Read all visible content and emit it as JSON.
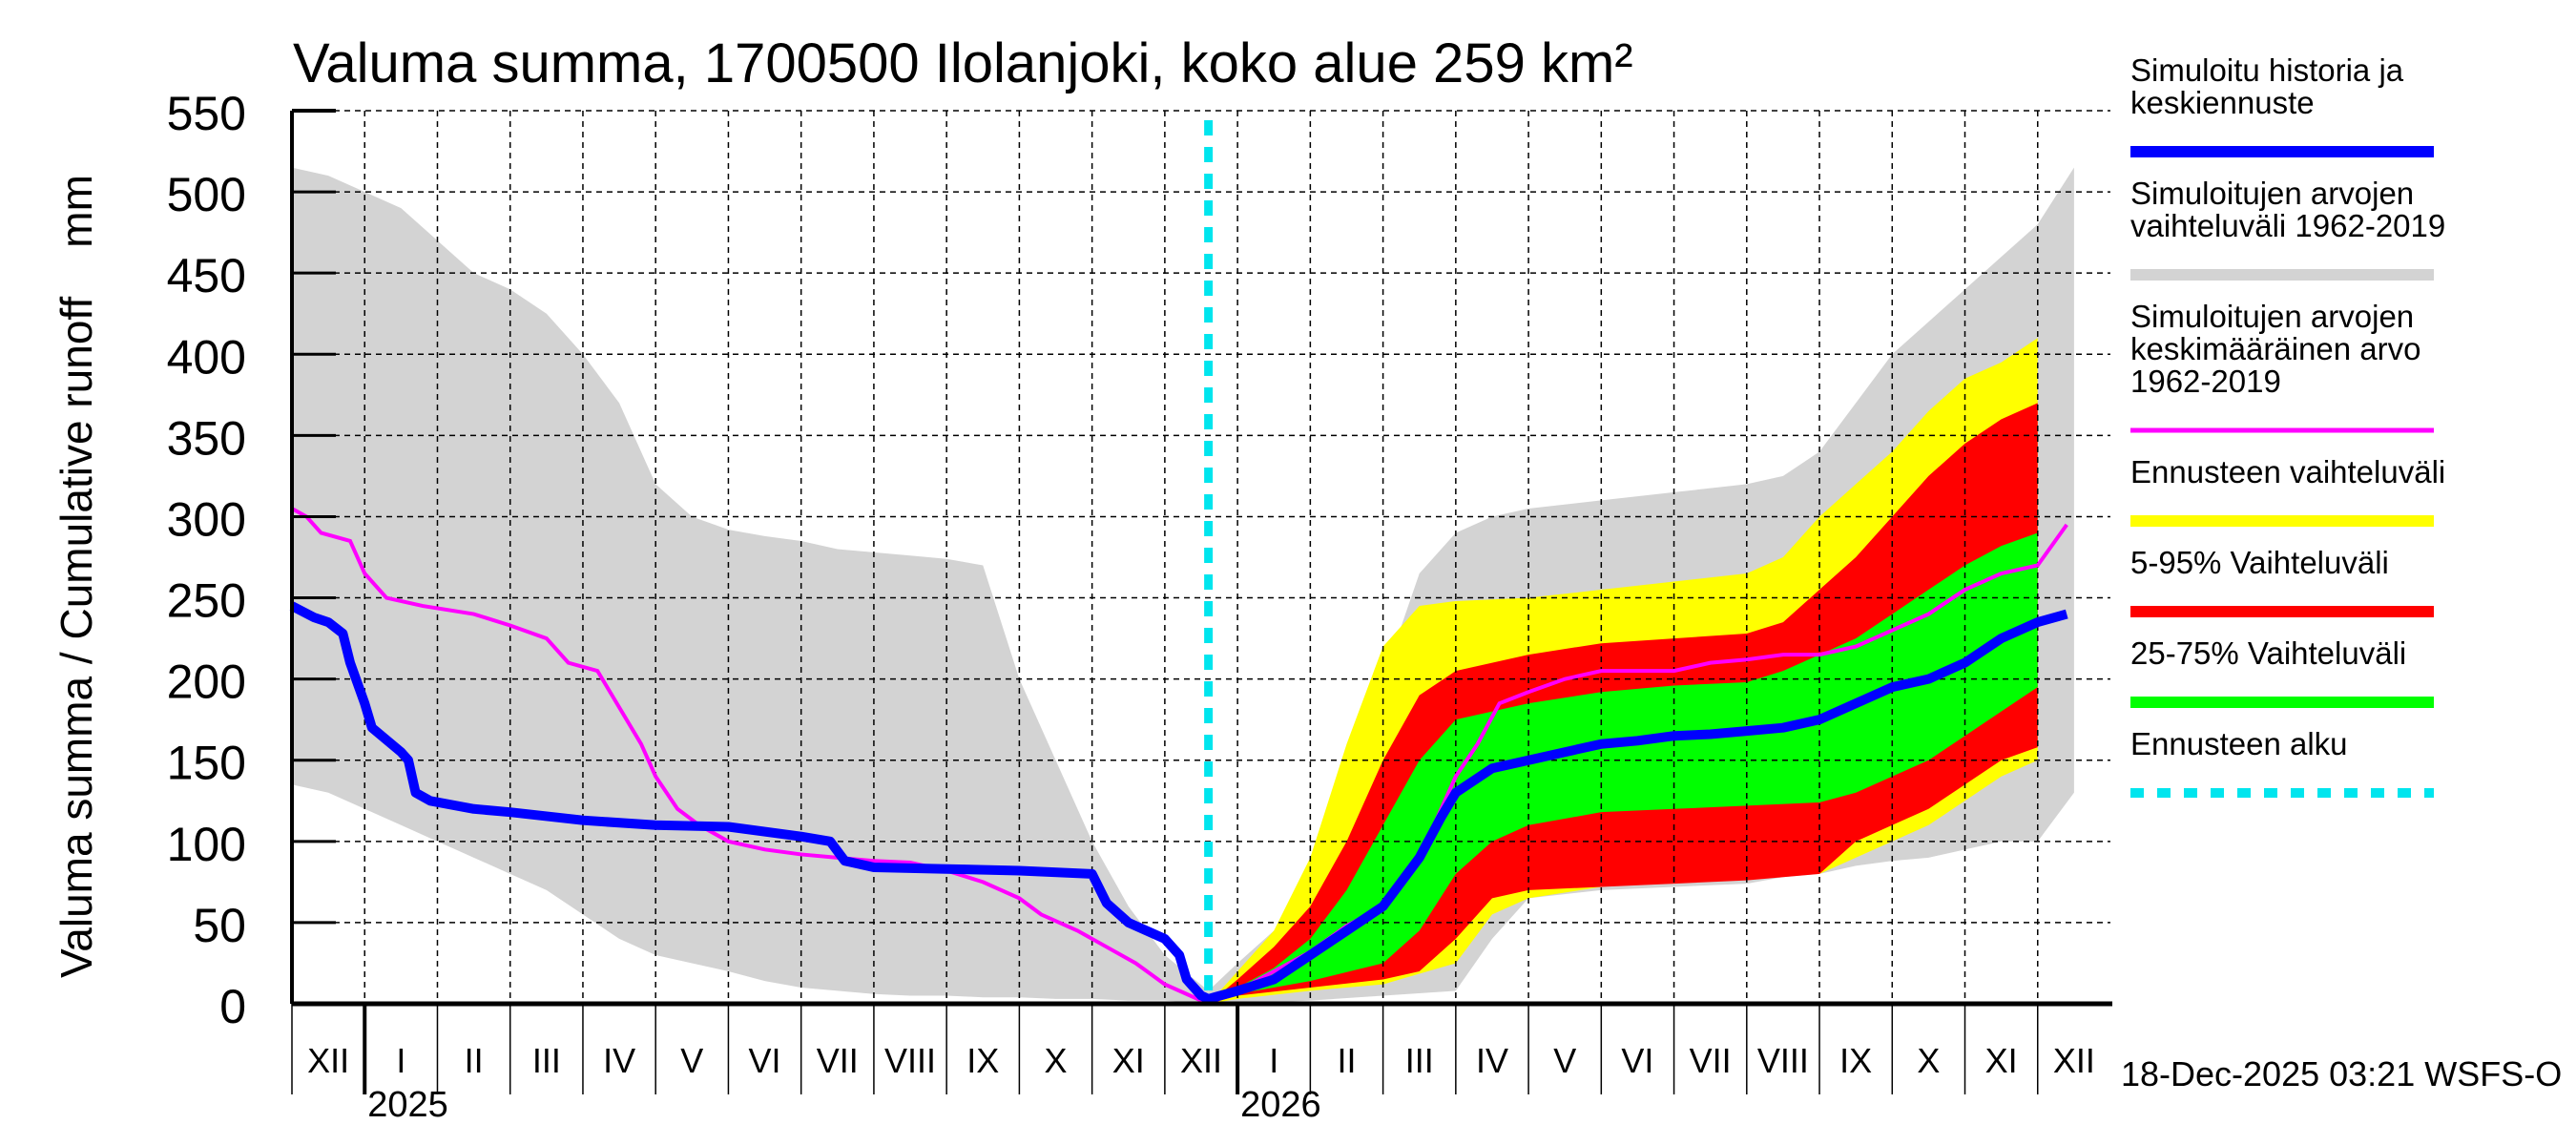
{
  "chart_data": {
    "type": "area",
    "title": "Valuma summa, 1700500 Ilolanjoki, koko alue 259 km²",
    "ylabel": "Valuma summa / Cumulative runoff    mm",
    "xlabel": "",
    "ylim": [
      0,
      550
    ],
    "yticks": [
      0,
      50,
      100,
      150,
      200,
      250,
      300,
      350,
      400,
      450,
      500,
      550
    ],
    "grid": true,
    "legend_position": "right",
    "x_range_months": [
      0,
      25
    ],
    "month_labels": [
      "XII",
      "I",
      "II",
      "III",
      "IV",
      "V",
      "VI",
      "VII",
      "VIII",
      "IX",
      "X",
      "XI",
      "XII",
      "I",
      "II",
      "III",
      "IV",
      "V",
      "VI",
      "VII",
      "VIII",
      "IX",
      "X",
      "XI",
      "XII"
    ],
    "year_labels": [
      {
        "label": "2025",
        "month_index": 1
      },
      {
        "label": "2026",
        "month_index": 13
      }
    ],
    "forecast_start_month": 12.6,
    "timestamp": "18-Dec-2025 03:21 WSFS-O",
    "colors": {
      "history": "#0000ff",
      "hist_range": "#d3d3d3",
      "hist_mean": "#ff00ff",
      "forecast_range": "#ffff00",
      "p5_95": "#ff0000",
      "p25_75": "#00ff00",
      "forecast_start": "#00e5ee"
    },
    "legend": [
      {
        "key": "history",
        "label_lines": [
          "Simuloitu historia ja",
          "keskiennuste"
        ],
        "style": "solid"
      },
      {
        "key": "hist_range",
        "label_lines": [
          "Simuloitujen arvojen",
          "vaihteluväli 1962-2019"
        ],
        "style": "solid"
      },
      {
        "key": "hist_mean",
        "label_lines": [
          "Simuloitujen arvojen",
          "keskimääräinen arvo",
          "   1962-2019"
        ],
        "style": "thin"
      },
      {
        "key": "forecast_range",
        "label_lines": [
          "Ennusteen vaihteluväli"
        ],
        "style": "solid"
      },
      {
        "key": "p5_95",
        "label_lines": [
          "5-95% Vaihteluväli"
        ],
        "style": "solid"
      },
      {
        "key": "p25_75",
        "label_lines": [
          "25-75% Vaihteluväli"
        ],
        "style": "solid"
      },
      {
        "key": "forecast_start",
        "label_lines": [
          "Ennusteen alku"
        ],
        "style": "dotted"
      }
    ],
    "series": {
      "hist_range_upper": [
        [
          0,
          515
        ],
        [
          0.5,
          510
        ],
        [
          1,
          500
        ],
        [
          1.5,
          490
        ],
        [
          2,
          470
        ],
        [
          2.5,
          450
        ],
        [
          3,
          440
        ],
        [
          3.5,
          425
        ],
        [
          4,
          400
        ],
        [
          4.5,
          370
        ],
        [
          5,
          320
        ],
        [
          5.5,
          300
        ],
        [
          6,
          292
        ],
        [
          6.5,
          288
        ],
        [
          7,
          285
        ],
        [
          7.5,
          280
        ],
        [
          8,
          278
        ],
        [
          8.5,
          276
        ],
        [
          9,
          274
        ],
        [
          9.5,
          270
        ],
        [
          10,
          200
        ],
        [
          10.5,
          150
        ],
        [
          11,
          100
        ],
        [
          11.5,
          60
        ],
        [
          12,
          30
        ],
        [
          12.6,
          8
        ]
      ],
      "hist_range_lower": [
        [
          0,
          135
        ],
        [
          0.5,
          130
        ],
        [
          1,
          120
        ],
        [
          1.5,
          110
        ],
        [
          2,
          100
        ],
        [
          2.5,
          90
        ],
        [
          3,
          80
        ],
        [
          3.5,
          70
        ],
        [
          4,
          55
        ],
        [
          4.5,
          40
        ],
        [
          5,
          30
        ],
        [
          5.5,
          25
        ],
        [
          6,
          20
        ],
        [
          6.5,
          14
        ],
        [
          7,
          10
        ],
        [
          7.5,
          8
        ],
        [
          8,
          6
        ],
        [
          8.5,
          5
        ],
        [
          9,
          5
        ],
        [
          9.5,
          4
        ],
        [
          10,
          4
        ],
        [
          10.5,
          3
        ],
        [
          11,
          3
        ],
        [
          11.5,
          2
        ],
        [
          12,
          2
        ],
        [
          12.6,
          0
        ]
      ],
      "hist_range_upper_fc": [
        [
          12.6,
          8
        ],
        [
          13,
          25
        ],
        [
          13.5,
          45
        ],
        [
          14,
          70
        ],
        [
          14.5,
          120
        ],
        [
          15,
          200
        ],
        [
          15.5,
          265
        ],
        [
          16,
          290
        ],
        [
          16.5,
          300
        ],
        [
          17,
          305
        ],
        [
          18,
          310
        ],
        [
          19,
          315
        ],
        [
          20,
          320
        ],
        [
          20.5,
          325
        ],
        [
          21,
          340
        ],
        [
          21.5,
          370
        ],
        [
          22,
          400
        ],
        [
          22.5,
          420
        ],
        [
          23,
          440
        ],
        [
          23.5,
          460
        ],
        [
          24,
          480
        ],
        [
          24.5,
          515
        ]
      ],
      "hist_range_lower_fc": [
        [
          12.6,
          0
        ],
        [
          13,
          0
        ],
        [
          14,
          2
        ],
        [
          15,
          5
        ],
        [
          16,
          8
        ],
        [
          16.5,
          40
        ],
        [
          17,
          65
        ],
        [
          18,
          70
        ],
        [
          19,
          72
        ],
        [
          20,
          74
        ],
        [
          20.5,
          78
        ],
        [
          21,
          80
        ],
        [
          21.5,
          85
        ],
        [
          22,
          88
        ],
        [
          22.5,
          90
        ],
        [
          23,
          95
        ],
        [
          23.5,
          100
        ],
        [
          24,
          100
        ],
        [
          24.5,
          130
        ]
      ],
      "forecast_range_upper": [
        [
          12.6,
          0
        ],
        [
          13,
          20
        ],
        [
          13.5,
          45
        ],
        [
          14,
          90
        ],
        [
          14.5,
          160
        ],
        [
          15,
          220
        ],
        [
          15.5,
          245
        ],
        [
          16,
          248
        ],
        [
          17,
          250
        ],
        [
          18,
          255
        ],
        [
          19,
          260
        ],
        [
          20,
          265
        ],
        [
          20.5,
          275
        ],
        [
          21,
          300
        ],
        [
          21.5,
          320
        ],
        [
          22,
          340
        ],
        [
          22.5,
          365
        ],
        [
          23,
          385
        ],
        [
          23.5,
          395
        ],
        [
          24,
          410
        ]
      ],
      "forecast_range_lower": [
        [
          12.6,
          0
        ],
        [
          13,
          3
        ],
        [
          14,
          8
        ],
        [
          15,
          12
        ],
        [
          16,
          25
        ],
        [
          16.5,
          55
        ],
        [
          17,
          65
        ],
        [
          18,
          72
        ],
        [
          19,
          76
        ],
        [
          20,
          78
        ],
        [
          21,
          80
        ],
        [
          21.5,
          90
        ],
        [
          22,
          100
        ],
        [
          22.5,
          110
        ],
        [
          23,
          125
        ],
        [
          23.5,
          140
        ],
        [
          24,
          150
        ]
      ],
      "p5_95_upper": [
        [
          12.6,
          0
        ],
        [
          13,
          15
        ],
        [
          13.5,
          35
        ],
        [
          14,
          60
        ],
        [
          14.5,
          100
        ],
        [
          15,
          150
        ],
        [
          15.5,
          190
        ],
        [
          16,
          205
        ],
        [
          17,
          215
        ],
        [
          18,
          222
        ],
        [
          19,
          225
        ],
        [
          20,
          228
        ],
        [
          20.5,
          235
        ],
        [
          21,
          255
        ],
        [
          21.5,
          275
        ],
        [
          22,
          300
        ],
        [
          22.5,
          325
        ],
        [
          23,
          345
        ],
        [
          23.5,
          360
        ],
        [
          24,
          370
        ]
      ],
      "p5_95_lower": [
        [
          12.6,
          0
        ],
        [
          13,
          5
        ],
        [
          14,
          10
        ],
        [
          15,
          15
        ],
        [
          15.5,
          20
        ],
        [
          16,
          40
        ],
        [
          16.5,
          65
        ],
        [
          17,
          70
        ],
        [
          18,
          72
        ],
        [
          19,
          74
        ],
        [
          20,
          76
        ],
        [
          21,
          80
        ],
        [
          21.5,
          100
        ],
        [
          22,
          110
        ],
        [
          22.5,
          120
        ],
        [
          23,
          135
        ],
        [
          23.5,
          150
        ],
        [
          24,
          158
        ]
      ],
      "p25_75_upper": [
        [
          12.6,
          0
        ],
        [
          13,
          10
        ],
        [
          13.5,
          22
        ],
        [
          14,
          40
        ],
        [
          14.5,
          70
        ],
        [
          15,
          110
        ],
        [
          15.5,
          150
        ],
        [
          16,
          175
        ],
        [
          17,
          185
        ],
        [
          18,
          192
        ],
        [
          19,
          196
        ],
        [
          20,
          198
        ],
        [
          20.5,
          205
        ],
        [
          21,
          215
        ],
        [
          21.5,
          225
        ],
        [
          22,
          240
        ],
        [
          22.5,
          255
        ],
        [
          23,
          270
        ],
        [
          23.5,
          282
        ],
        [
          24,
          290
        ]
      ],
      "p25_75_lower": [
        [
          12.6,
          0
        ],
        [
          13,
          6
        ],
        [
          14,
          14
        ],
        [
          15,
          25
        ],
        [
          15.5,
          45
        ],
        [
          16,
          80
        ],
        [
          16.5,
          100
        ],
        [
          17,
          110
        ],
        [
          18,
          118
        ],
        [
          19,
          120
        ],
        [
          20,
          122
        ],
        [
          21,
          124
        ],
        [
          21.5,
          130
        ],
        [
          22,
          140
        ],
        [
          22.5,
          150
        ],
        [
          23,
          165
        ],
        [
          23.5,
          180
        ],
        [
          24,
          195
        ]
      ],
      "history_line": [
        [
          0,
          245
        ],
        [
          0.3,
          238
        ],
        [
          0.5,
          235
        ],
        [
          0.7,
          228
        ],
        [
          0.8,
          210
        ],
        [
          1,
          185
        ],
        [
          1.1,
          170
        ],
        [
          1.5,
          155
        ],
        [
          1.6,
          150
        ],
        [
          1.7,
          130
        ],
        [
          1.9,
          125
        ],
        [
          2.5,
          120
        ],
        [
          3,
          118
        ],
        [
          4,
          113
        ],
        [
          5,
          110
        ],
        [
          6,
          109
        ],
        [
          7,
          103
        ],
        [
          7.4,
          100
        ],
        [
          7.6,
          88
        ],
        [
          8,
          84
        ],
        [
          9,
          83
        ],
        [
          10,
          82
        ],
        [
          11,
          80
        ],
        [
          11.2,
          62
        ],
        [
          11.5,
          50
        ],
        [
          12,
          40
        ],
        [
          12.2,
          30
        ],
        [
          12.3,
          15
        ],
        [
          12.5,
          5
        ],
        [
          12.6,
          3
        ],
        [
          13,
          8
        ],
        [
          13.5,
          15
        ],
        [
          14,
          30
        ],
        [
          14.5,
          45
        ],
        [
          15,
          60
        ],
        [
          15.5,
          90
        ],
        [
          15.8,
          115
        ],
        [
          16,
          130
        ],
        [
          16.5,
          145
        ],
        [
          17,
          150
        ],
        [
          17.5,
          155
        ],
        [
          18,
          160
        ],
        [
          18.5,
          162
        ],
        [
          19,
          165
        ],
        [
          19.5,
          166
        ],
        [
          20,
          168
        ],
        [
          20.5,
          170
        ],
        [
          21,
          175
        ],
        [
          21.5,
          185
        ],
        [
          22,
          195
        ],
        [
          22.5,
          200
        ],
        [
          23,
          210
        ],
        [
          23.5,
          225
        ],
        [
          24,
          235
        ],
        [
          24.4,
          240
        ]
      ],
      "hist_mean_line": [
        [
          0,
          305
        ],
        [
          0.2,
          300
        ],
        [
          0.4,
          290
        ],
        [
          0.8,
          285
        ],
        [
          1,
          265
        ],
        [
          1.3,
          250
        ],
        [
          1.8,
          245
        ],
        [
          2.5,
          240
        ],
        [
          3,
          233
        ],
        [
          3.5,
          225
        ],
        [
          3.8,
          210
        ],
        [
          4.2,
          205
        ],
        [
          4.4,
          190
        ],
        [
          4.8,
          160
        ],
        [
          5,
          140
        ],
        [
          5.3,
          120
        ],
        [
          5.6,
          110
        ],
        [
          6,
          100
        ],
        [
          6.5,
          95
        ],
        [
          7,
          92
        ],
        [
          7.5,
          90
        ],
        [
          8,
          88
        ],
        [
          8.5,
          87
        ],
        [
          9,
          82
        ],
        [
          9.5,
          75
        ],
        [
          10,
          65
        ],
        [
          10.3,
          55
        ],
        [
          10.8,
          45
        ],
        [
          11.2,
          35
        ],
        [
          11.6,
          25
        ],
        [
          12,
          12
        ],
        [
          12.6,
          0
        ],
        [
          13,
          8
        ],
        [
          13.5,
          20
        ],
        [
          14,
          32
        ],
        [
          14.5,
          48
        ],
        [
          15,
          60
        ],
        [
          15.5,
          90
        ],
        [
          15.8,
          120
        ],
        [
          16,
          140
        ],
        [
          16.3,
          160
        ],
        [
          16.6,
          185
        ],
        [
          17,
          192
        ],
        [
          17.5,
          200
        ],
        [
          18,
          205
        ],
        [
          19,
          205
        ],
        [
          19.5,
          210
        ],
        [
          20,
          212
        ],
        [
          20.5,
          215
        ],
        [
          21,
          215
        ],
        [
          21.5,
          220
        ],
        [
          22,
          230
        ],
        [
          22.5,
          240
        ],
        [
          23,
          255
        ],
        [
          23.5,
          265
        ],
        [
          24,
          270
        ],
        [
          24.4,
          295
        ]
      ]
    }
  }
}
